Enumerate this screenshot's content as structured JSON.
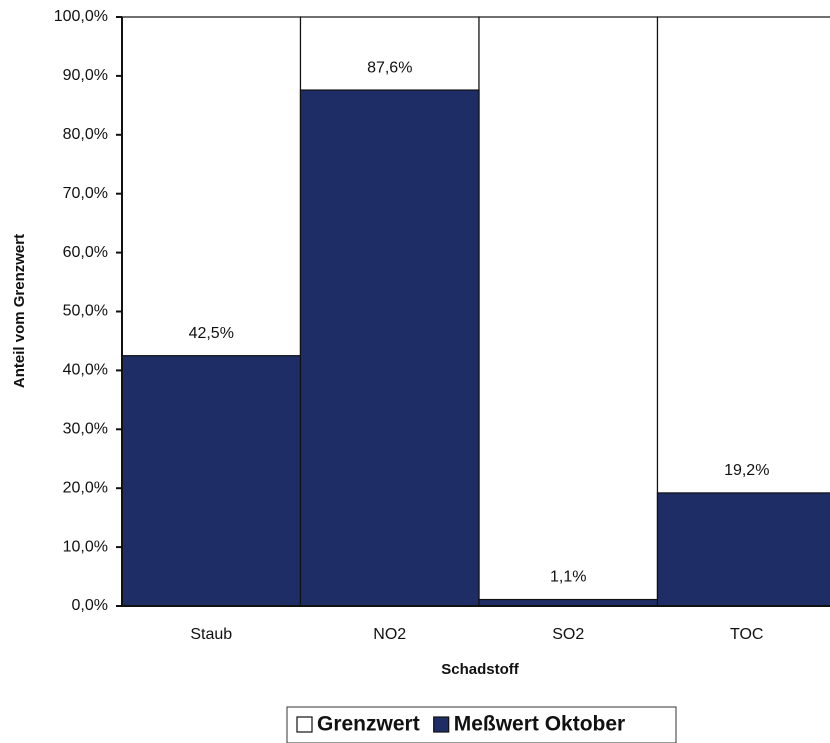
{
  "chart_data": {
    "type": "bar",
    "x_label": "Schadstoff",
    "y_label": "Anteil vom Grenzwert",
    "categories": [
      "Staub",
      "NO2",
      "SO2",
      "TOC"
    ],
    "series": [
      {
        "name": "Grenzwert",
        "color": "#ffffff",
        "values": [
          100,
          100,
          100,
          100
        ]
      },
      {
        "name": "Meßwert Oktober",
        "color": "#1e2d66",
        "values": [
          42.5,
          87.6,
          1.1,
          19.2
        ],
        "value_labels": [
          "42,5%",
          "87,6%",
          "1,1%",
          "19,2%"
        ]
      }
    ],
    "ylim": [
      0,
      100
    ],
    "yticks": [
      {
        "value": 0,
        "label": "0,0%"
      },
      {
        "value": 10,
        "label": "10,0%"
      },
      {
        "value": 20,
        "label": "20,0%"
      },
      {
        "value": 30,
        "label": "30,0%"
      },
      {
        "value": 40,
        "label": "40,0%"
      },
      {
        "value": 50,
        "label": "50,0%"
      },
      {
        "value": 60,
        "label": "60,0%"
      },
      {
        "value": 70,
        "label": "70,0%"
      },
      {
        "value": 80,
        "label": "80,0%"
      },
      {
        "value": 90,
        "label": "90,0%"
      },
      {
        "value": 100,
        "label": "100,0%"
      }
    ],
    "grid": false,
    "legend": "bottom"
  }
}
